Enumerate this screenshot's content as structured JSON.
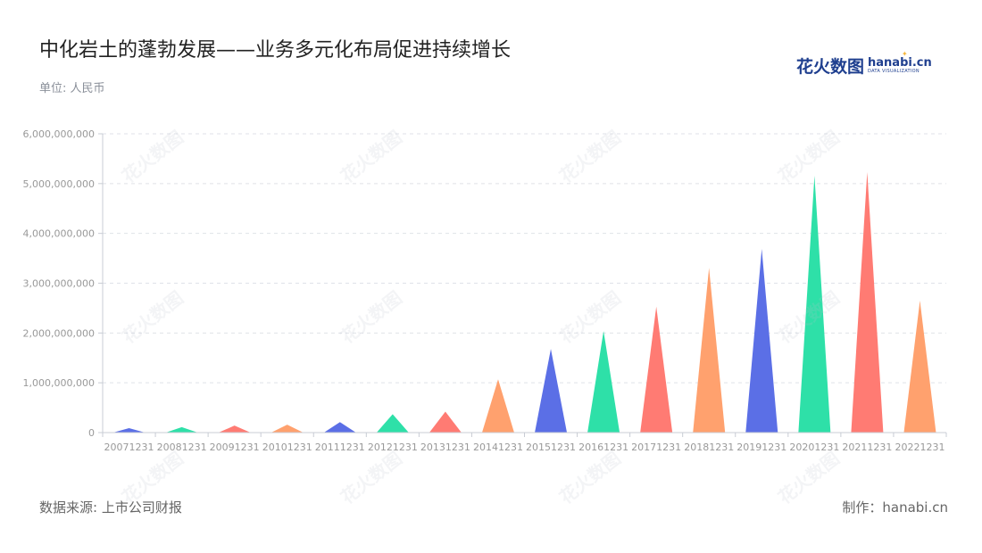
{
  "header": {
    "title": "中化岩土的蓬勃发展——业务多元化布局促进持续增长",
    "unit": "单位: 人民币"
  },
  "logo": {
    "cn": "花火数图",
    "en": "hanabi.cn",
    "sub": "DATA VISUALIZATION"
  },
  "footer": {
    "source": "数据来源: 上市公司财报",
    "maker": "制作：hanabi.cn"
  },
  "watermark": "花火数图",
  "colors": [
    "#5b6fe6",
    "#2ee0a8",
    "#ff7b73",
    "#ffa16e"
  ],
  "chart_data": {
    "type": "bar",
    "categories": [
      "20071231",
      "20081231",
      "20091231",
      "20101231",
      "20111231",
      "20121231",
      "20131231",
      "20141231",
      "20151231",
      "20161231",
      "20171231",
      "20181231",
      "20191231",
      "20201231",
      "20211231",
      "20221231"
    ],
    "values": [
      90000000,
      110000000,
      140000000,
      160000000,
      210000000,
      370000000,
      420000000,
      1070000000,
      1680000000,
      2040000000,
      2530000000,
      3310000000,
      3690000000,
      5160000000,
      5230000000,
      2650000000
    ],
    "ylim": [
      0,
      6000000000
    ],
    "yticks": [
      0,
      1000000000,
      2000000000,
      3000000000,
      4000000000,
      5000000000,
      6000000000
    ],
    "ytick_labels": [
      "0",
      "1,000,000,000",
      "2,000,000,000",
      "3,000,000,000",
      "4,000,000,000",
      "5,000,000,000",
      "6,000,000,000"
    ],
    "grid": true,
    "mark_shape": "triangle"
  }
}
